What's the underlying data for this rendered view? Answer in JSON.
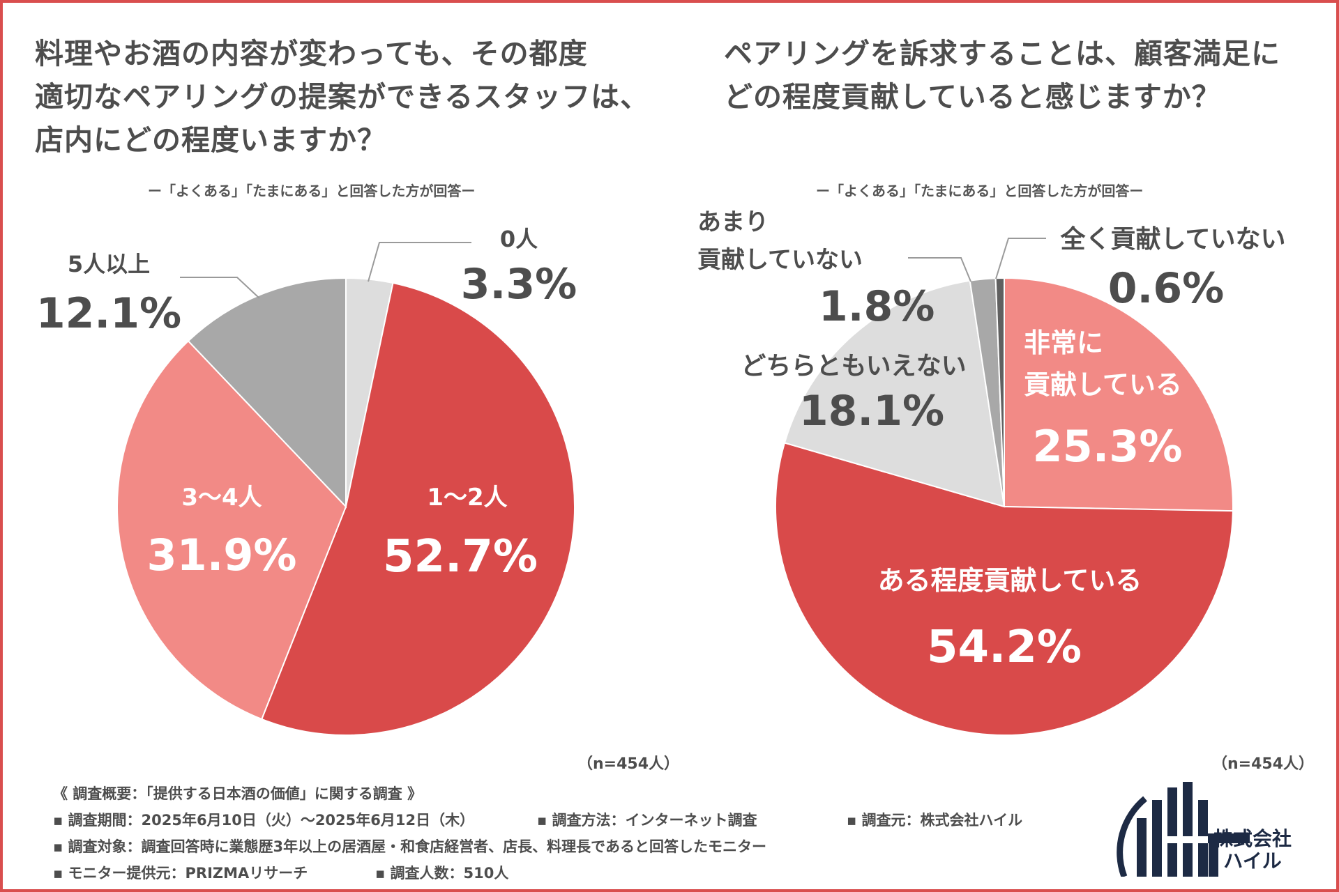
{
  "left": {
    "title_lines": [
      "料理やお酒の内容が変わっても、その都度",
      "適切なペアリングの提案ができるスタッフは、",
      "店内にどの程度いますか？"
    ],
    "subtitle": "ー「よくある」「たまにある」と回答した方が回答ー",
    "n_label": "（n=454人）"
  },
  "right": {
    "title_lines": [
      "ペアリングを訴求することは、顧客満足に",
      "どの程度貢献していると感じますか？"
    ],
    "subtitle": "ー「よくある」「たまにある」と回答した方が回答ー",
    "n_label": "（n=454人）"
  },
  "chart_data": [
    {
      "type": "pie",
      "title": "料理やお酒の内容が変わっても、その都度適切なペアリングの提案ができるスタッフは、店内にどの程度いますか？",
      "unit": "%",
      "slices": [
        {
          "label": "0人",
          "value": 3.3,
          "display": "3.3%",
          "color": "#dddddd"
        },
        {
          "label": "1〜2人",
          "value": 52.7,
          "display": "52.7%",
          "color": "#d94a4a"
        },
        {
          "label": "3〜4人",
          "value": 31.9,
          "display": "31.9%",
          "color": "#f28a86"
        },
        {
          "label": "5人以上",
          "value": 12.1,
          "display": "12.1%",
          "color": "#a8a8a8"
        }
      ]
    },
    {
      "type": "pie",
      "title": "ペアリングを訴求することは、顧客満足にどの程度貢献していると感じますか？",
      "unit": "%",
      "slices": [
        {
          "label": "非常に貢献している",
          "label_lines": [
            "非常に",
            "貢献している"
          ],
          "value": 25.3,
          "display": "25.3%",
          "color": "#f28a86"
        },
        {
          "label": "ある程度貢献している",
          "label_lines": [
            "ある程度貢献している"
          ],
          "value": 54.2,
          "display": "54.2%",
          "color": "#d94a4a"
        },
        {
          "label": "どちらともいえない",
          "label_lines": [
            "どちらともいえない"
          ],
          "value": 18.1,
          "display": "18.1%",
          "color": "#dddddd"
        },
        {
          "label": "あまり貢献していない",
          "label_lines": [
            "あまり",
            "貢献していない"
          ],
          "value": 1.8,
          "display": "1.8%",
          "color": "#a8a8a8"
        },
        {
          "label": "全く貢献していない",
          "label_lines": [
            "全く貢献していない"
          ],
          "value": 0.6,
          "display": "0.6%",
          "color": "#606060"
        }
      ]
    }
  ],
  "footer": {
    "heading": "《 調査概要：「提供する日本酒の価値」に関する調査 》",
    "period": "▪ 調査期間：2025年6月10日（火）〜2025年6月12日（木）",
    "method": "▪ 調査方法：インターネット調査",
    "source": "▪ 調査元：株式会社ハイル",
    "target": "▪ 調査対象：調査回答時に業態歴3年以上の居酒屋・和食店経営者、店長、料理長であると回答したモニター",
    "provider": "▪ モニター提供元：PRIZMAリサーチ",
    "count": "▪ 調査人数：510人"
  },
  "logo": {
    "line1": "株式会社",
    "line2": "ハイル",
    "color": "#1d2a44"
  }
}
